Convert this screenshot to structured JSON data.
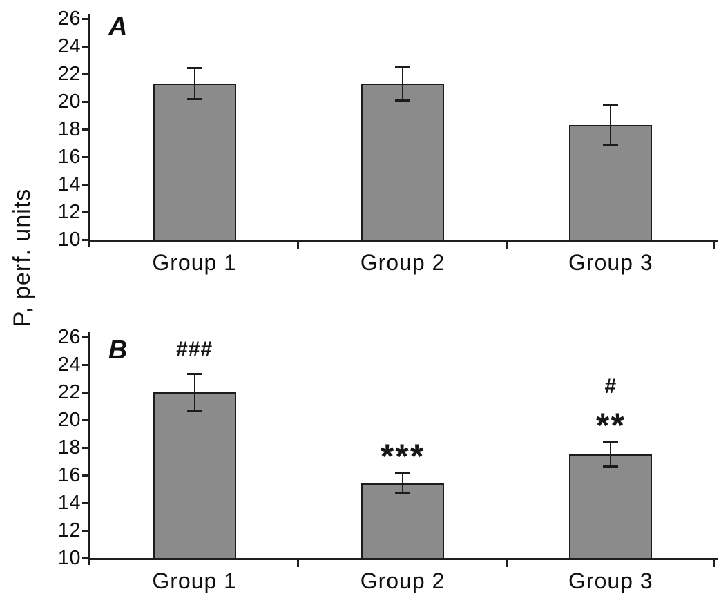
{
  "figure": {
    "background": "#ffffff",
    "bar_fill": "#8b8b8b",
    "bar_border": "#1c1c1c",
    "axis_color": "#1f1f1f",
    "text_color": "#101010"
  },
  "chart_data": [
    {
      "type": "bar",
      "panel_label": "A",
      "ylabel": "P, perf. units",
      "categories": [
        "Group 1",
        "Group 2",
        "Group 3"
      ],
      "values": [
        21.3,
        21.3,
        18.3
      ],
      "errors": [
        1.2,
        1.3,
        1.5
      ],
      "annotations": [
        [],
        [],
        []
      ],
      "ylim": [
        10,
        26
      ],
      "yticks": [
        10,
        12,
        14,
        16,
        18,
        20,
        22,
        24,
        26
      ],
      "grid": false,
      "legend": null
    },
    {
      "type": "bar",
      "panel_label": "B",
      "ylabel": "P, perf. units",
      "categories": [
        "Group 1",
        "Group 2",
        "Group 3"
      ],
      "values": [
        22.0,
        15.4,
        17.5
      ],
      "errors": [
        1.4,
        0.8,
        0.95
      ],
      "annotations": [
        [
          "###"
        ],
        [
          "***"
        ],
        [
          "**",
          "#"
        ]
      ],
      "ylim": [
        10,
        26
      ],
      "yticks": [
        10,
        12,
        14,
        16,
        18,
        20,
        22,
        24,
        26
      ],
      "grid": false,
      "legend": null
    }
  ]
}
